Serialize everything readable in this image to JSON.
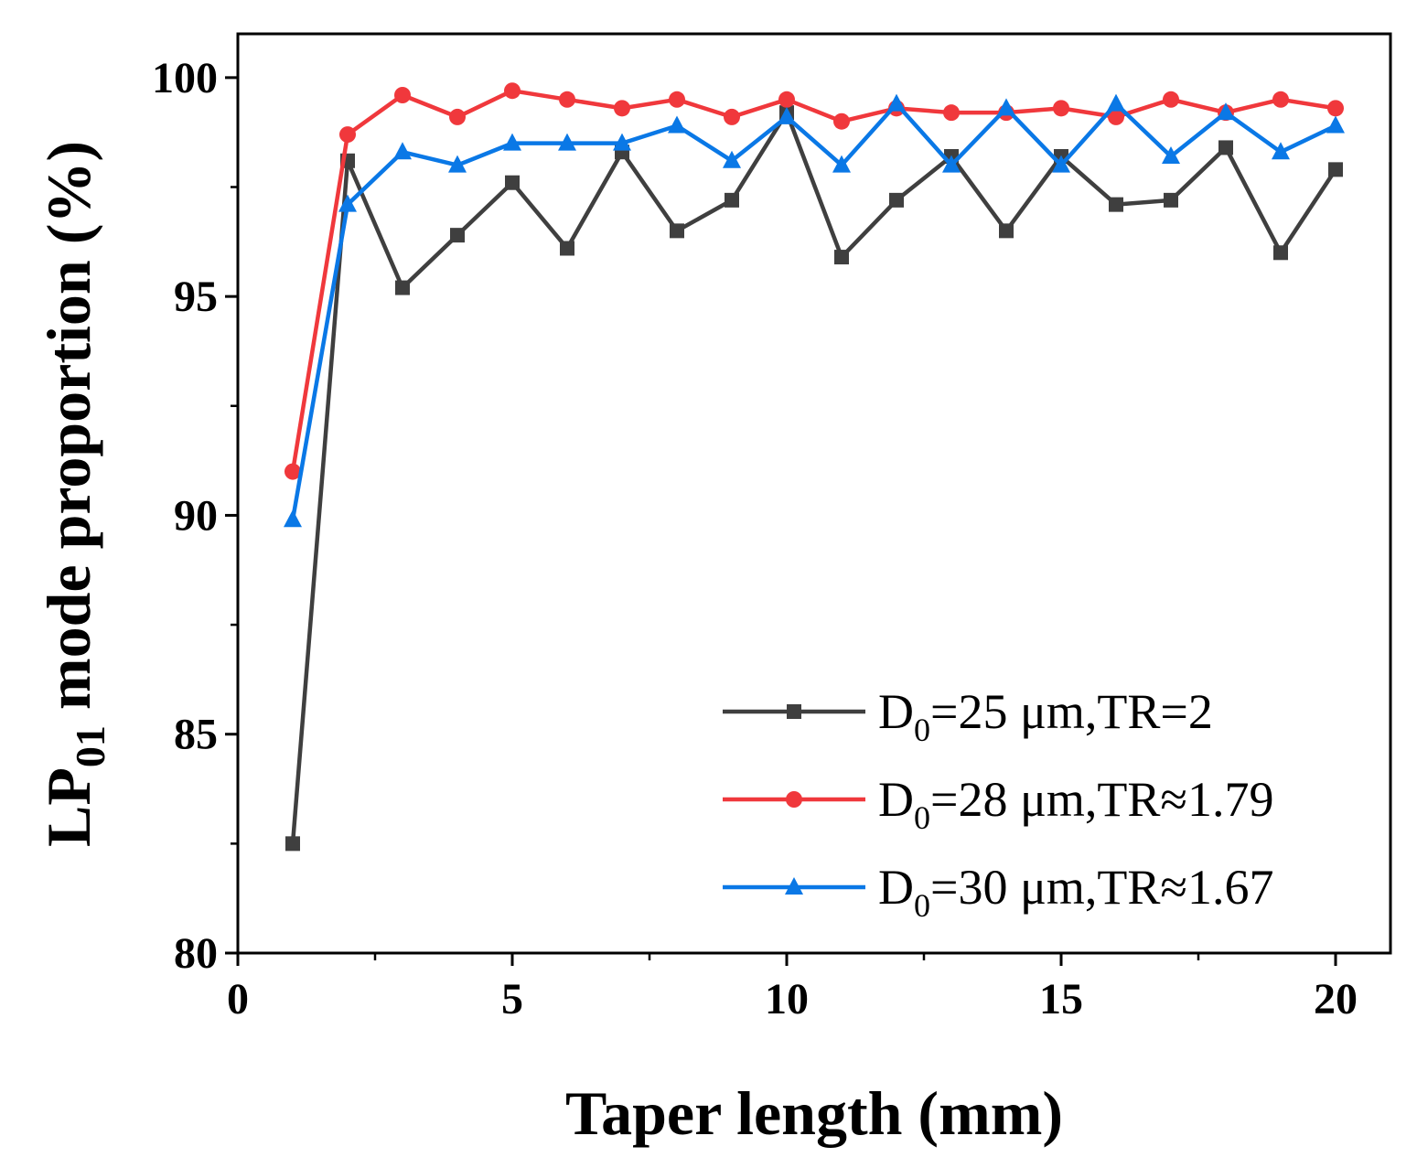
{
  "chart_data": {
    "type": "line",
    "title": "",
    "xlabel": "Taper length (mm)",
    "ylabel": {
      "prefix": "LP",
      "subscript": "01",
      "suffix": " mode proportion (%)"
    },
    "xlim": [
      0,
      21
    ],
    "ylim": [
      80,
      101
    ],
    "x_ticks": [
      0,
      5,
      10,
      15,
      20
    ],
    "y_ticks": [
      80,
      85,
      90,
      95,
      100
    ],
    "x": [
      1,
      2,
      3,
      4,
      5,
      6,
      7,
      8,
      9,
      10,
      11,
      12,
      13,
      14,
      15,
      16,
      17,
      18,
      19,
      20
    ],
    "legend_position": "bottom-right",
    "series": [
      {
        "name": "D0=25 μm,TR=2",
        "legend": {
          "base": "D",
          "sub": "0",
          "rest": "=25 μm,TR=2"
        },
        "color": "#3f3f3f",
        "marker": "square",
        "values": [
          82.5,
          98.1,
          95.2,
          96.4,
          97.6,
          96.1,
          98.3,
          96.5,
          97.2,
          99.2,
          95.9,
          97.2,
          98.2,
          96.5,
          98.2,
          97.1,
          97.2,
          98.4,
          96.0,
          97.9
        ]
      },
      {
        "name": "D0=28 μm,TR≈1.79",
        "legend": {
          "base": "D",
          "sub": "0",
          "rest": "=28 μm,TR≈1.79"
        },
        "color": "#f0383c",
        "marker": "circle",
        "values": [
          91.0,
          98.7,
          99.6,
          99.1,
          99.7,
          99.5,
          99.3,
          99.5,
          99.1,
          99.5,
          99.0,
          99.3,
          99.2,
          99.2,
          99.3,
          99.1,
          99.5,
          99.2,
          99.5,
          99.3
        ]
      },
      {
        "name": "D0=30 μm,TR≈1.67",
        "legend": {
          "base": "D",
          "sub": "0",
          "rest": "=30 μm,TR≈1.67"
        },
        "color": "#0a78e6",
        "marker": "triangle",
        "values": [
          89.9,
          97.1,
          98.3,
          98.0,
          98.5,
          98.5,
          98.5,
          98.9,
          98.1,
          99.1,
          98.0,
          99.4,
          98.0,
          99.3,
          98.0,
          99.4,
          98.2,
          99.2,
          98.3,
          98.9
        ]
      }
    ]
  }
}
